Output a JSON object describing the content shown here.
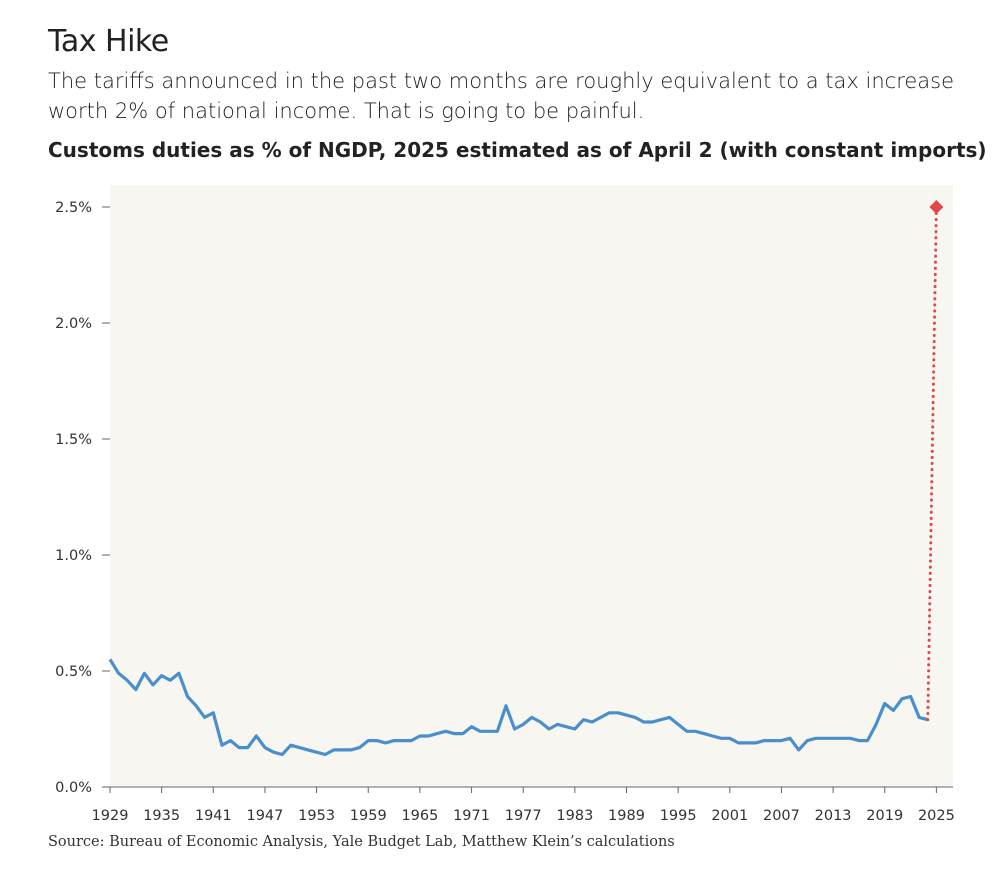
{
  "header": {
    "title": "Tax Hike",
    "subtitle": "The tariffs announced in the past two months are roughly equivalent to a tax increase worth 2% of national income. That is going to be painful."
  },
  "footer": {
    "source": "Source: Bureau of Economic Analysis, Yale Budget Lab, Matthew Klein’s calculations"
  },
  "colors": {
    "plot_background": "#f7f6f1",
    "line": "#4a8fcb",
    "estimate": "#e04848",
    "axis": "#666666"
  },
  "chart_data": {
    "type": "line",
    "title": "Customs duties as % of NGDP, 2025 estimated as of April 2 (with constant imports)",
    "xlabel": "",
    "ylabel": "",
    "xlim": [
      1929,
      2026
    ],
    "ylim": [
      0.0,
      2.5
    ],
    "grid": false,
    "y_ticks": [
      0.0,
      0.5,
      1.0,
      1.5,
      2.0,
      2.5
    ],
    "y_tick_labels": [
      "0.0%",
      "0.5%",
      "1.0%",
      "1.5%",
      "2.0%",
      "2.5%"
    ],
    "x_ticks": [
      1929,
      1935,
      1941,
      1947,
      1953,
      1959,
      1965,
      1971,
      1977,
      1983,
      1989,
      1995,
      2001,
      2007,
      2013,
      2019,
      2025
    ],
    "x_tick_labels": [
      "1929",
      "1935",
      "1941",
      "1947",
      "1953",
      "1959",
      "1965",
      "1971",
      "1977",
      "1983",
      "1989",
      "1995",
      "2001",
      "2007",
      "2013",
      "2019",
      "2025"
    ],
    "series": [
      {
        "style": "solid",
        "x": [
          1929,
          1930,
          1931,
          1932,
          1933,
          1934,
          1935,
          1936,
          1937,
          1938,
          1939,
          1940,
          1941,
          1942,
          1943,
          1944,
          1945,
          1946,
          1947,
          1948,
          1949,
          1950,
          1951,
          1952,
          1953,
          1954,
          1955,
          1956,
          1957,
          1958,
          1959,
          1960,
          1961,
          1962,
          1963,
          1964,
          1965,
          1966,
          1967,
          1968,
          1969,
          1970,
          1971,
          1972,
          1973,
          1974,
          1975,
          1976,
          1977,
          1978,
          1979,
          1980,
          1981,
          1982,
          1983,
          1984,
          1985,
          1986,
          1987,
          1988,
          1989,
          1990,
          1991,
          1992,
          1993,
          1994,
          1995,
          1996,
          1997,
          1998,
          1999,
          2000,
          2001,
          2002,
          2003,
          2004,
          2005,
          2006,
          2007,
          2008,
          2009,
          2010,
          2011,
          2012,
          2013,
          2014,
          2015,
          2016,
          2017,
          2018,
          2019,
          2020,
          2021,
          2022,
          2023,
          2024
        ],
        "values": [
          0.55,
          0.49,
          0.46,
          0.42,
          0.49,
          0.44,
          0.48,
          0.46,
          0.49,
          0.39,
          0.35,
          0.3,
          0.32,
          0.18,
          0.2,
          0.17,
          0.17,
          0.22,
          0.17,
          0.15,
          0.14,
          0.18,
          0.17,
          0.16,
          0.15,
          0.14,
          0.16,
          0.16,
          0.16,
          0.17,
          0.2,
          0.2,
          0.19,
          0.2,
          0.2,
          0.2,
          0.22,
          0.22,
          0.23,
          0.24,
          0.23,
          0.23,
          0.26,
          0.24,
          0.24,
          0.24,
          0.35,
          0.25,
          0.27,
          0.3,
          0.28,
          0.25,
          0.27,
          0.26,
          0.25,
          0.29,
          0.28,
          0.3,
          0.32,
          0.32,
          0.31,
          0.3,
          0.28,
          0.28,
          0.29,
          0.3,
          0.27,
          0.24,
          0.24,
          0.23,
          0.22,
          0.21,
          0.21,
          0.19,
          0.19,
          0.19,
          0.2,
          0.2,
          0.2,
          0.21,
          0.16,
          0.2,
          0.21,
          0.21,
          0.21,
          0.21,
          0.21,
          0.2,
          0.2,
          0.27,
          0.36,
          0.33,
          0.38,
          0.39,
          0.3,
          0.29
        ]
      },
      {
        "style": "dotted",
        "x": [
          2024,
          2025
        ],
        "values": [
          0.29,
          2.5
        ]
      }
    ],
    "highlight_point": {
      "x": 2025,
      "value": 2.5,
      "marker": "diamond"
    }
  }
}
